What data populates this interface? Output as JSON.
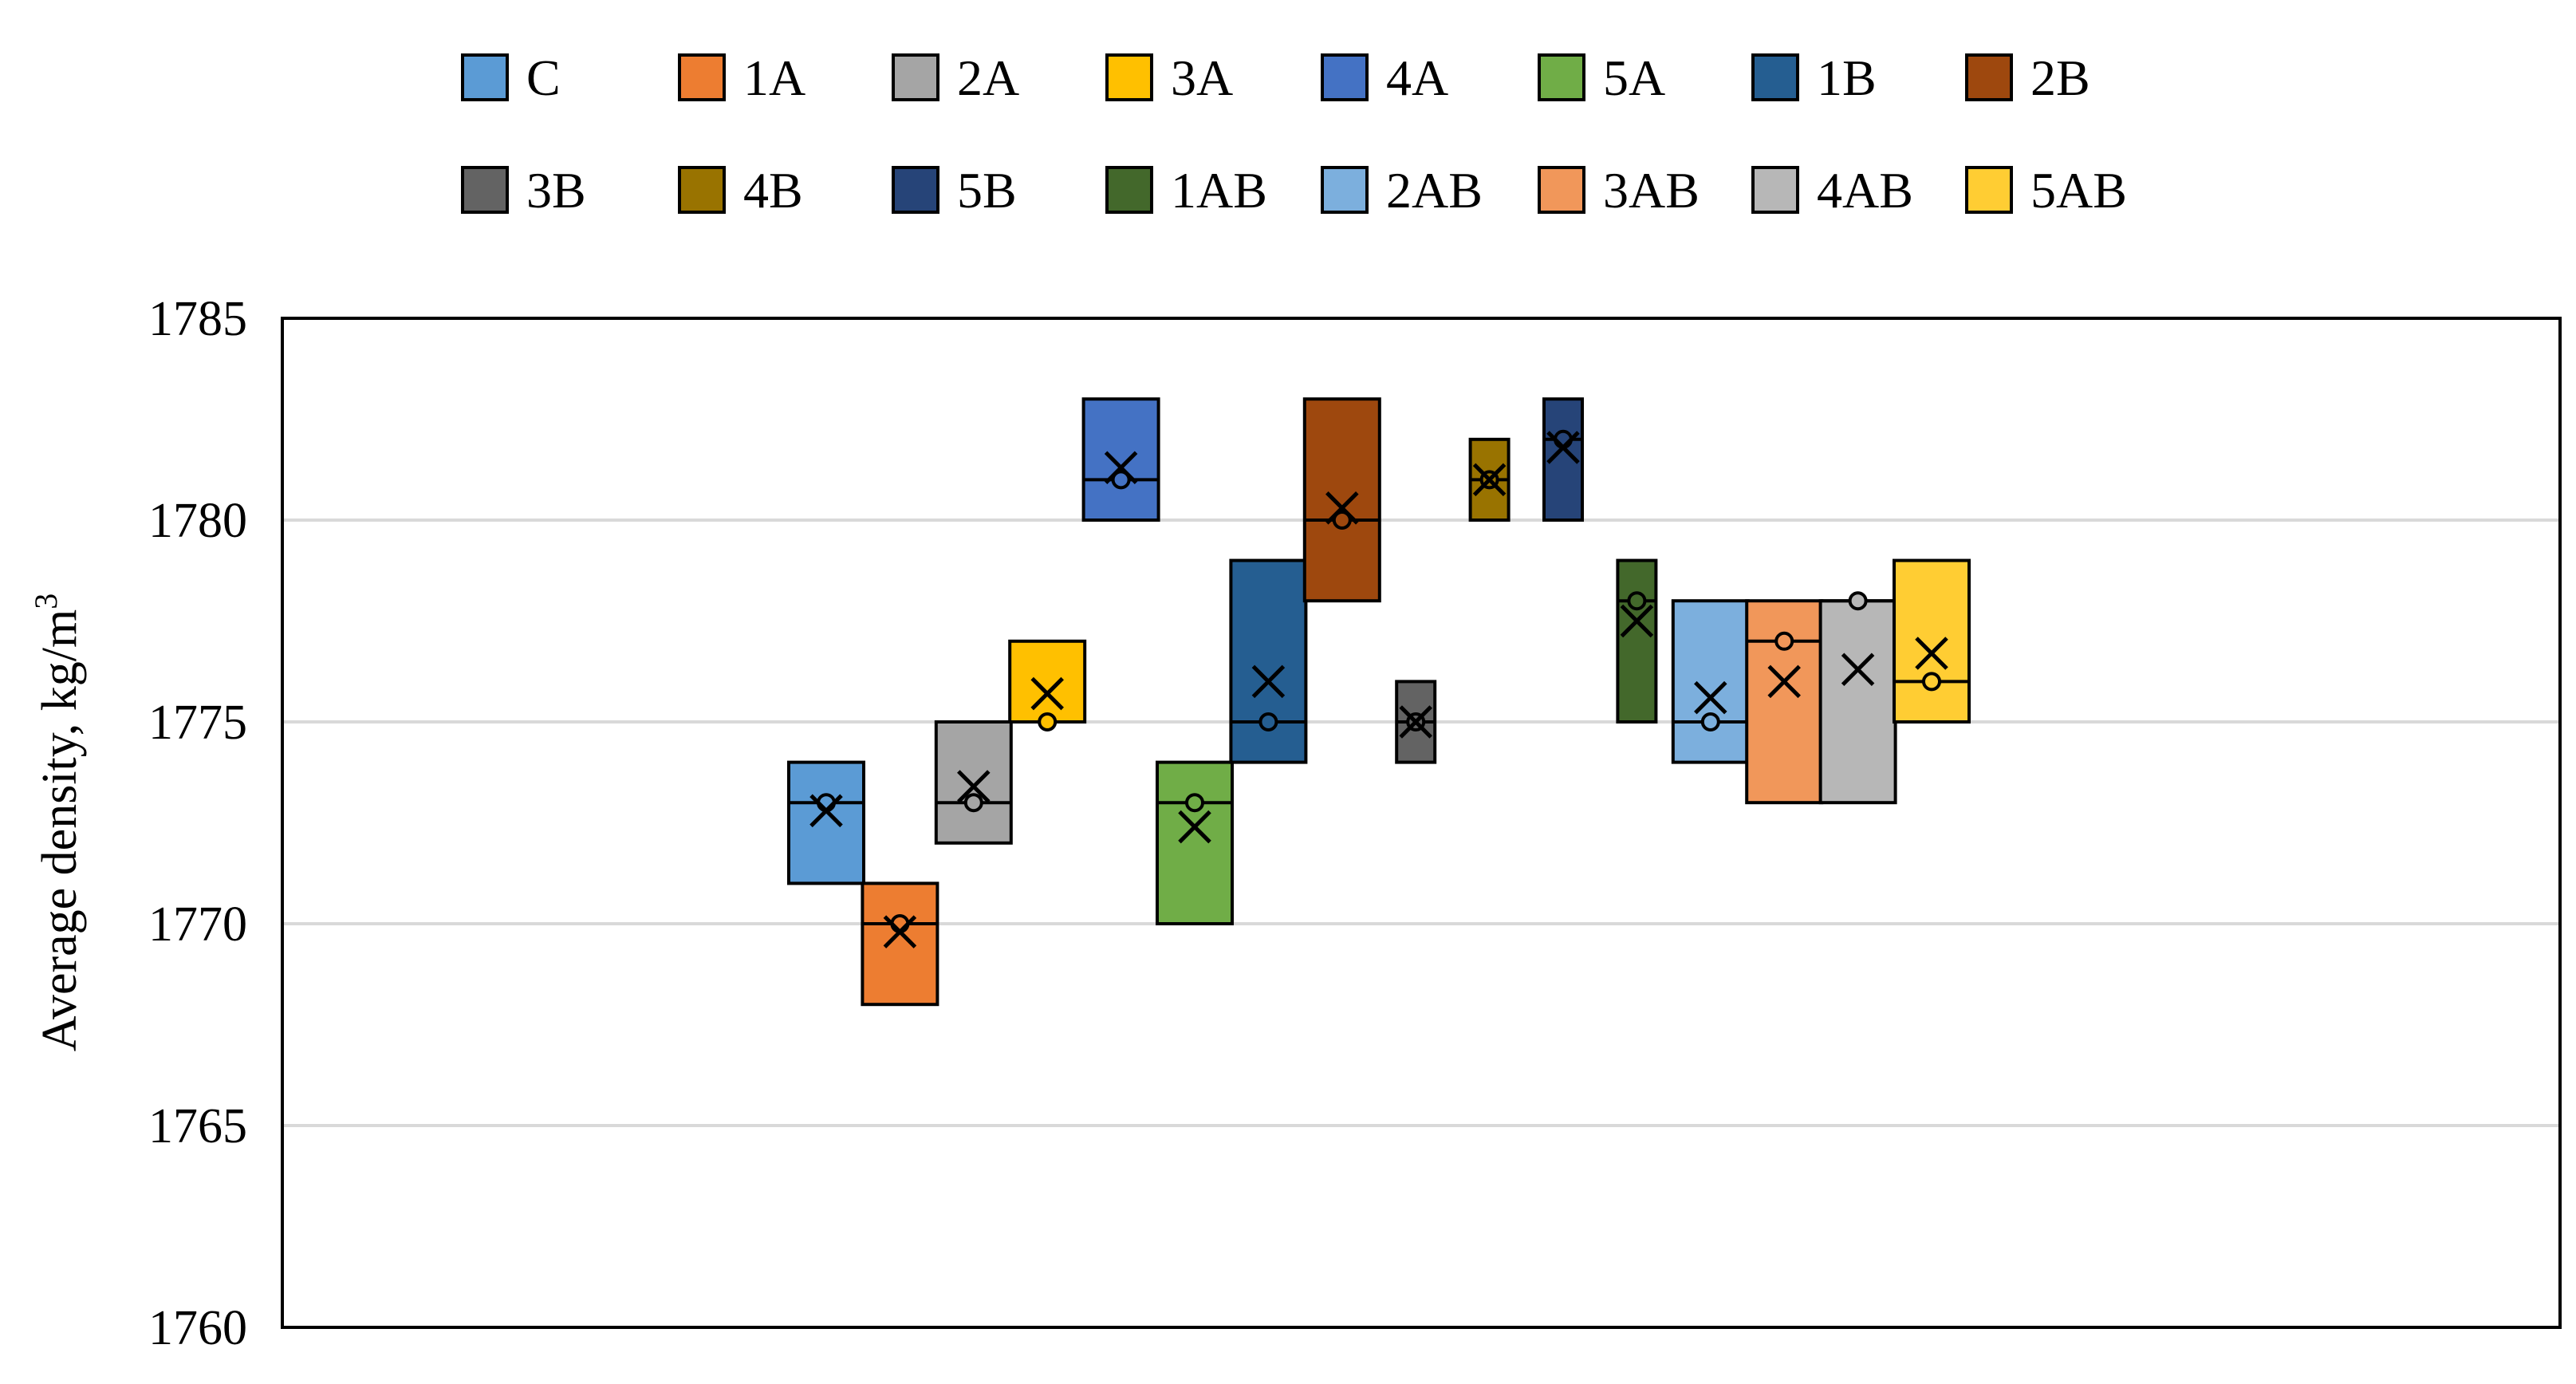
{
  "chart_data": {
    "type": "boxplot",
    "title": "",
    "xlabel": "",
    "ylabel": "Average density, kg/m",
    "ylabel_superscript": "3",
    "ylim": [
      1760,
      1785
    ],
    "yticks": [
      "1760",
      "1765",
      "1770",
      "1775",
      "1780",
      "1785"
    ],
    "grid": true,
    "legend_position": "top",
    "series": [
      {
        "name": "C",
        "color": "#5b9bd5",
        "q1": 1771,
        "median": 1773,
        "q3": 1774,
        "mean": 1772.8,
        "point": 1773
      },
      {
        "name": "1A",
        "color": "#ed7d31",
        "q1": 1768,
        "median": 1770,
        "q3": 1771,
        "mean": 1769.8,
        "point": 1770
      },
      {
        "name": "2A",
        "color": "#a5a5a5",
        "q1": 1772,
        "median": 1773,
        "q3": 1775,
        "mean": 1773.4,
        "point": 1773
      },
      {
        "name": "3A",
        "color": "#ffc000",
        "q1": 1775,
        "median": 1775,
        "q3": 1777,
        "mean": 1775.7,
        "point": 1775
      },
      {
        "name": "4A",
        "color": "#4472c4",
        "q1": 1780,
        "median": 1781,
        "q3": 1783,
        "mean": 1781.3,
        "point": 1781
      },
      {
        "name": "5A",
        "color": "#70ad47",
        "q1": 1770,
        "median": 1773,
        "q3": 1774,
        "mean": 1772.4,
        "point": 1773
      },
      {
        "name": "1B",
        "color": "#255e91",
        "q1": 1774,
        "median": 1775,
        "q3": 1779,
        "mean": 1776.0,
        "point": 1775
      },
      {
        "name": "2B",
        "color": "#9e480e",
        "q1": 1778,
        "median": 1780,
        "q3": 1783,
        "mean": 1780.3,
        "point": 1780
      },
      {
        "name": "3B",
        "color": "#636363",
        "q1": 1774,
        "median": 1775,
        "q3": 1776,
        "mean": 1775.0,
        "point": 1775
      },
      {
        "name": "4B",
        "color": "#997300",
        "q1": 1780,
        "median": 1781,
        "q3": 1782,
        "mean": 1781.0,
        "point": 1781
      },
      {
        "name": "5B",
        "color": "#264478",
        "q1": 1780,
        "median": 1782,
        "q3": 1783,
        "mean": 1781.8,
        "point": 1782
      },
      {
        "name": "1AB",
        "color": "#43682b",
        "q1": 1775,
        "median": 1778,
        "q3": 1779,
        "mean": 1777.5,
        "point": 1778
      },
      {
        "name": "2AB",
        "color": "#7cafdd",
        "q1": 1774,
        "median": 1775,
        "q3": 1778,
        "mean": 1775.6,
        "point": 1775
      },
      {
        "name": "3AB",
        "color": "#f1975a",
        "q1": 1773,
        "median": 1777,
        "q3": 1778,
        "mean": 1776.0,
        "point": 1777
      },
      {
        "name": "4AB",
        "color": "#b7b7b7",
        "q1": 1773,
        "median": 1778,
        "q3": 1778,
        "mean": 1776.3,
        "point": 1778
      },
      {
        "name": "5AB",
        "color": "#ffcd33",
        "q1": 1775,
        "median": 1776,
        "q3": 1779,
        "mean": 1776.7,
        "point": 1776
      }
    ]
  }
}
